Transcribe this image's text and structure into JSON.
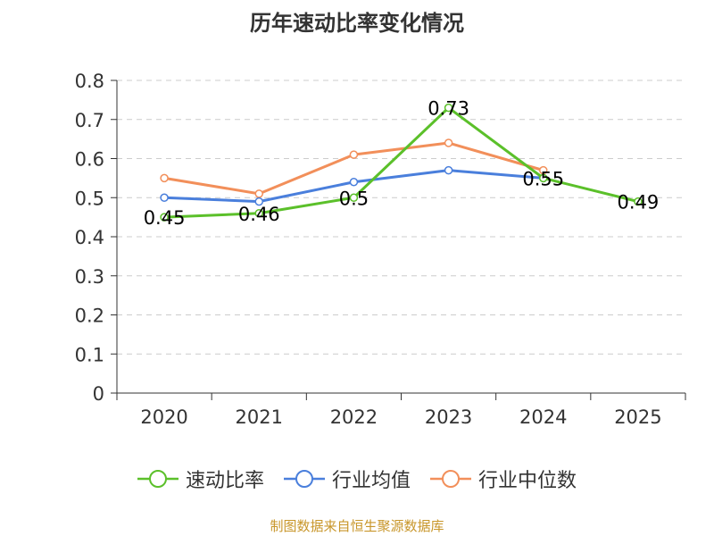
{
  "chart_data": {
    "type": "line",
    "title": "历年速动比率变化情况",
    "categories": [
      "2020",
      "2021",
      "2022",
      "2023",
      "2024",
      "2025"
    ],
    "ylim": [
      0,
      0.8
    ],
    "yticks": [
      "0",
      "0.1",
      "0.2",
      "0.3",
      "0.4",
      "0.5",
      "0.6",
      "0.7",
      "0.8"
    ],
    "grid": true,
    "legend_position": "bottom",
    "series": [
      {
        "name": "速动比率",
        "color": "#5bc02a",
        "values": [
          0.45,
          0.46,
          0.5,
          0.73,
          0.55,
          0.49
        ],
        "labels": [
          "0.45",
          "0.46",
          "0.5",
          "0.73",
          "0.55",
          "0.49"
        ]
      },
      {
        "name": "行业均值",
        "color": "#4a7fdc",
        "values": [
          0.5,
          0.49,
          0.54,
          0.57,
          0.55,
          null
        ]
      },
      {
        "name": "行业中位数",
        "color": "#f28f5a",
        "values": [
          0.55,
          0.51,
          0.61,
          0.64,
          0.57,
          null
        ]
      }
    ]
  },
  "source": "制图数据来自恒生聚源数据库"
}
